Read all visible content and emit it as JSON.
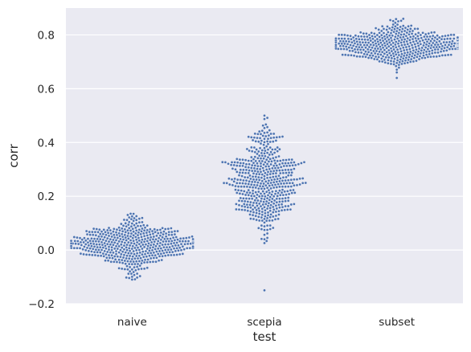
{
  "chart_data": {
    "type": "scatter",
    "subtype": "swarm",
    "xlabel": "test",
    "ylabel": "corr",
    "ylim": [
      -0.2,
      0.9
    ],
    "yticks": [
      -0.2,
      0.0,
      0.2,
      0.4,
      0.6,
      0.8
    ],
    "ytick_labels": [
      "−0.2",
      "0.0",
      "0.2",
      "0.4",
      "0.6",
      "0.8"
    ],
    "categories": [
      "naive",
      "scepia",
      "subset"
    ],
    "grid": true,
    "legend": "none",
    "colors": {
      "background": "#eaeaf2",
      "grid": "#ffffff",
      "point": "#4c72b0",
      "point_edge": "#ffffff"
    },
    "series": [
      {
        "category": "naive",
        "count": 500,
        "min": -0.11,
        "max": 0.135,
        "median": 0.02,
        "sd": 0.045
      },
      {
        "category": "scepia",
        "count": 500,
        "min": -0.15,
        "max": 0.5,
        "median": 0.26,
        "sd": 0.095
      },
      {
        "category": "subset",
        "count": 500,
        "min": 0.64,
        "max": 0.86,
        "median": 0.76,
        "sd": 0.035
      }
    ]
  }
}
